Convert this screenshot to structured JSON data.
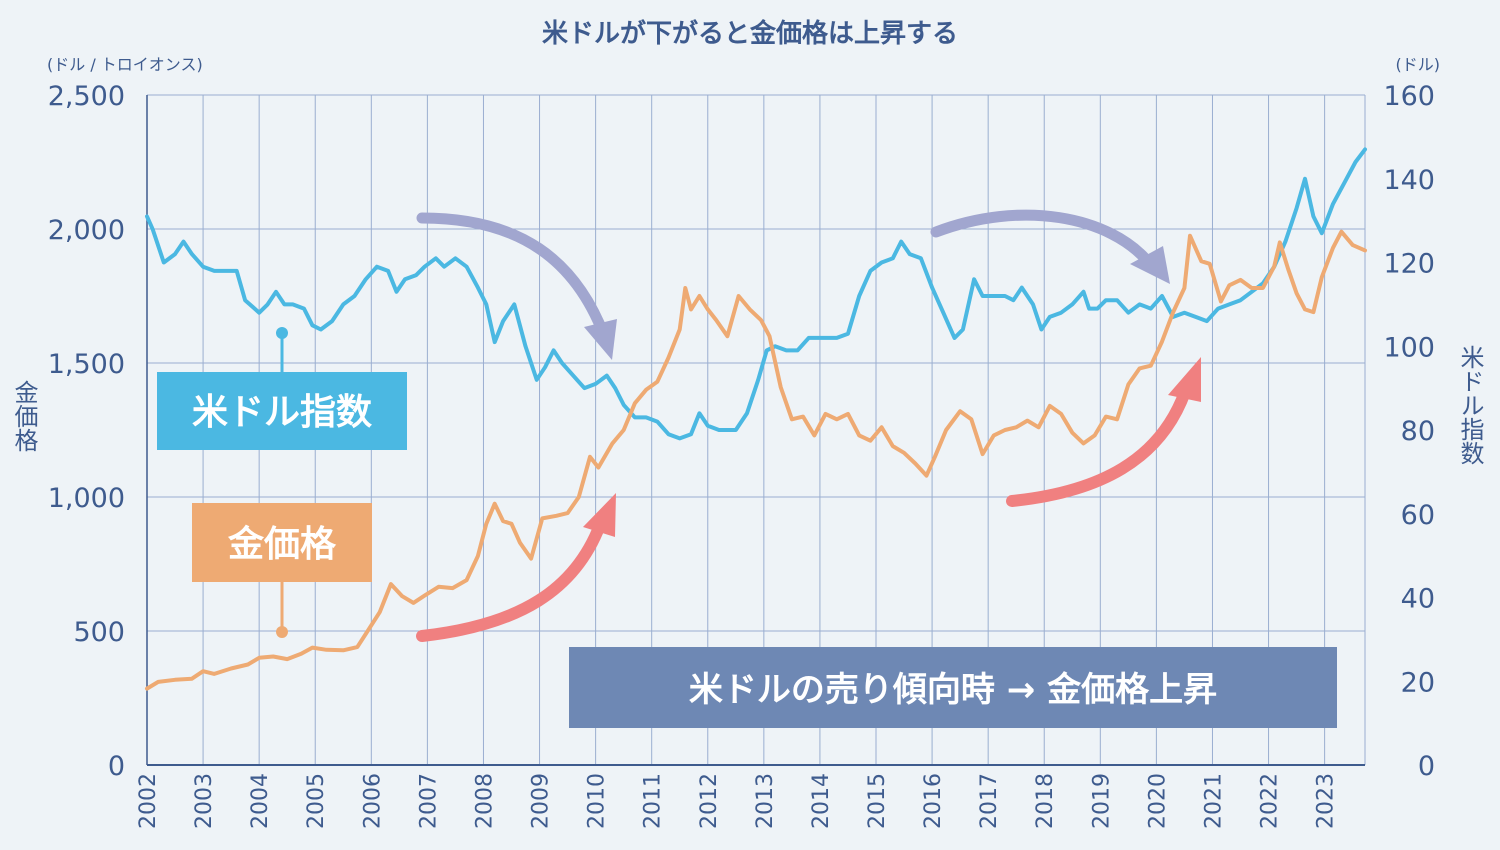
{
  "chart_data": {
    "type": "line",
    "title": "米ドルが下がると金価格は上昇する",
    "left_axis": {
      "label": "金価格",
      "unit": "(ドル / トロイオンス)",
      "range": [
        0,
        2500
      ],
      "ticks": [
        "0",
        "500",
        "1,000",
        "1,500",
        "2,000",
        "2,500"
      ]
    },
    "right_axis": {
      "label": "米ドル指数",
      "unit": "(ドル)",
      "range": [
        0,
        160
      ],
      "ticks": [
        "0",
        "20",
        "40",
        "60",
        "80",
        "100",
        "120",
        "140",
        "160"
      ]
    },
    "x_axis": {
      "range": [
        2002.0,
        2023.72
      ],
      "ticks": [
        "2002",
        "2003",
        "2004",
        "2005",
        "2006",
        "2007",
        "2008",
        "2009",
        "2010",
        "2011",
        "2012",
        "2013",
        "2014",
        "2015",
        "2016",
        "2017",
        "2018",
        "2019",
        "2020",
        "2021",
        "2022",
        "2023"
      ]
    },
    "grid": true,
    "series": [
      {
        "name": "米ドル指数",
        "axis": "right",
        "color": "#4bb8e2",
        "points": [
          [
            2002.0,
            131
          ],
          [
            2002.1,
            128
          ],
          [
            2002.3,
            120
          ],
          [
            2002.5,
            122
          ],
          [
            2002.65,
            125
          ],
          [
            2002.8,
            122
          ],
          [
            2003.0,
            119
          ],
          [
            2003.2,
            118
          ],
          [
            2003.4,
            118
          ],
          [
            2003.6,
            118
          ],
          [
            2003.75,
            111
          ],
          [
            2004.0,
            108
          ],
          [
            2004.15,
            110
          ],
          [
            2004.3,
            113
          ],
          [
            2004.45,
            110
          ],
          [
            2004.6,
            110
          ],
          [
            2004.8,
            109
          ],
          [
            2004.95,
            105
          ],
          [
            2005.1,
            104
          ],
          [
            2005.3,
            106
          ],
          [
            2005.5,
            110
          ],
          [
            2005.7,
            112
          ],
          [
            2005.9,
            116
          ],
          [
            2006.1,
            119
          ],
          [
            2006.3,
            118
          ],
          [
            2006.45,
            113
          ],
          [
            2006.6,
            116
          ],
          [
            2006.8,
            117
          ],
          [
            2006.95,
            119
          ],
          [
            2007.15,
            121
          ],
          [
            2007.3,
            119
          ],
          [
            2007.5,
            121
          ],
          [
            2007.7,
            119
          ],
          [
            2007.9,
            114
          ],
          [
            2008.05,
            110
          ],
          [
            2008.2,
            101
          ],
          [
            2008.35,
            106
          ],
          [
            2008.55,
            110
          ],
          [
            2008.75,
            100
          ],
          [
            2008.95,
            92
          ],
          [
            2009.1,
            95
          ],
          [
            2009.25,
            99
          ],
          [
            2009.4,
            96
          ],
          [
            2009.6,
            93
          ],
          [
            2009.8,
            90
          ],
          [
            2010.0,
            91
          ],
          [
            2010.2,
            93
          ],
          [
            2010.35,
            90
          ],
          [
            2010.5,
            86
          ],
          [
            2010.7,
            83
          ],
          [
            2010.9,
            83
          ],
          [
            2011.1,
            82
          ],
          [
            2011.3,
            79
          ],
          [
            2011.5,
            78
          ],
          [
            2011.7,
            79
          ],
          [
            2011.85,
            84
          ],
          [
            2012.0,
            81
          ],
          [
            2012.2,
            80
          ],
          [
            2012.5,
            80
          ],
          [
            2012.7,
            84
          ],
          [
            2012.9,
            92
          ],
          [
            2013.05,
            99
          ],
          [
            2013.2,
            100
          ],
          [
            2013.4,
            99
          ],
          [
            2013.6,
            99
          ],
          [
            2013.8,
            102
          ],
          [
            2014.0,
            102
          ],
          [
            2014.3,
            102
          ],
          [
            2014.5,
            103
          ],
          [
            2014.7,
            112
          ],
          [
            2014.9,
            118
          ],
          [
            2015.1,
            120
          ],
          [
            2015.3,
            121
          ],
          [
            2015.45,
            125
          ],
          [
            2015.6,
            122
          ],
          [
            2015.8,
            121
          ],
          [
            2016.0,
            114
          ],
          [
            2016.2,
            108
          ],
          [
            2016.4,
            102
          ],
          [
            2016.55,
            104
          ],
          [
            2016.75,
            116
          ],
          [
            2016.9,
            112
          ],
          [
            2017.1,
            112
          ],
          [
            2017.3,
            112
          ],
          [
            2017.45,
            111
          ],
          [
            2017.6,
            114
          ],
          [
            2017.8,
            110
          ],
          [
            2017.95,
            104
          ],
          [
            2018.1,
            107
          ],
          [
            2018.3,
            108
          ],
          [
            2018.5,
            110
          ],
          [
            2018.7,
            113
          ],
          [
            2018.8,
            109
          ],
          [
            2018.95,
            109
          ],
          [
            2019.1,
            111
          ],
          [
            2019.3,
            111
          ],
          [
            2019.5,
            108
          ],
          [
            2019.7,
            110
          ],
          [
            2019.9,
            109
          ],
          [
            2020.1,
            112
          ],
          [
            2020.3,
            107
          ],
          [
            2020.5,
            108
          ],
          [
            2020.7,
            107
          ],
          [
            2020.9,
            106
          ],
          [
            2021.1,
            109
          ],
          [
            2021.3,
            110
          ],
          [
            2021.5,
            111
          ],
          [
            2021.7,
            113
          ],
          [
            2021.9,
            115
          ],
          [
            2022.1,
            119
          ],
          [
            2022.3,
            125
          ],
          [
            2022.5,
            133
          ],
          [
            2022.65,
            140
          ],
          [
            2022.8,
            131
          ],
          [
            2022.95,
            127
          ],
          [
            2023.15,
            134
          ],
          [
            2023.35,
            139
          ],
          [
            2023.55,
            144
          ],
          [
            2023.72,
            147
          ]
        ]
      },
      {
        "name": "金価格",
        "axis": "left",
        "color": "#eeaa73",
        "points": [
          [
            2002.0,
            285
          ],
          [
            2002.2,
            310
          ],
          [
            2002.5,
            318
          ],
          [
            2002.8,
            322
          ],
          [
            2003.0,
            350
          ],
          [
            2003.2,
            340
          ],
          [
            2003.5,
            360
          ],
          [
            2003.8,
            375
          ],
          [
            2004.0,
            400
          ],
          [
            2004.25,
            405
          ],
          [
            2004.5,
            395
          ],
          [
            2004.75,
            415
          ],
          [
            2004.95,
            438
          ],
          [
            2005.2,
            430
          ],
          [
            2005.5,
            428
          ],
          [
            2005.75,
            440
          ],
          [
            2005.95,
            505
          ],
          [
            2006.15,
            570
          ],
          [
            2006.35,
            675
          ],
          [
            2006.55,
            630
          ],
          [
            2006.75,
            605
          ],
          [
            2006.95,
            632
          ],
          [
            2007.2,
            665
          ],
          [
            2007.45,
            660
          ],
          [
            2007.7,
            690
          ],
          [
            2007.9,
            780
          ],
          [
            2008.05,
            900
          ],
          [
            2008.2,
            975
          ],
          [
            2008.35,
            910
          ],
          [
            2008.5,
            900
          ],
          [
            2008.65,
            830
          ],
          [
            2008.85,
            770
          ],
          [
            2009.05,
            920
          ],
          [
            2009.3,
            930
          ],
          [
            2009.5,
            940
          ],
          [
            2009.7,
            1000
          ],
          [
            2009.9,
            1150
          ],
          [
            2010.05,
            1110
          ],
          [
            2010.3,
            1200
          ],
          [
            2010.5,
            1250
          ],
          [
            2010.7,
            1350
          ],
          [
            2010.9,
            1400
          ],
          [
            2011.1,
            1430
          ],
          [
            2011.3,
            1520
          ],
          [
            2011.5,
            1625
          ],
          [
            2011.6,
            1780
          ],
          [
            2011.7,
            1700
          ],
          [
            2011.85,
            1750
          ],
          [
            2012.0,
            1700
          ],
          [
            2012.15,
            1660
          ],
          [
            2012.35,
            1600
          ],
          [
            2012.55,
            1750
          ],
          [
            2012.75,
            1700
          ],
          [
            2012.95,
            1660
          ],
          [
            2013.1,
            1600
          ],
          [
            2013.3,
            1410
          ],
          [
            2013.5,
            1290
          ],
          [
            2013.7,
            1300
          ],
          [
            2013.9,
            1230
          ],
          [
            2014.1,
            1310
          ],
          [
            2014.3,
            1290
          ],
          [
            2014.5,
            1310
          ],
          [
            2014.7,
            1230
          ],
          [
            2014.9,
            1210
          ],
          [
            2015.1,
            1260
          ],
          [
            2015.3,
            1190
          ],
          [
            2015.5,
            1165
          ],
          [
            2015.7,
            1125
          ],
          [
            2015.9,
            1080
          ],
          [
            2016.05,
            1150
          ],
          [
            2016.25,
            1250
          ],
          [
            2016.5,
            1320
          ],
          [
            2016.7,
            1290
          ],
          [
            2016.9,
            1160
          ],
          [
            2017.1,
            1230
          ],
          [
            2017.3,
            1250
          ],
          [
            2017.5,
            1260
          ],
          [
            2017.7,
            1285
          ],
          [
            2017.9,
            1260
          ],
          [
            2018.1,
            1340
          ],
          [
            2018.3,
            1310
          ],
          [
            2018.5,
            1240
          ],
          [
            2018.7,
            1200
          ],
          [
            2018.9,
            1230
          ],
          [
            2019.1,
            1300
          ],
          [
            2019.3,
            1290
          ],
          [
            2019.5,
            1420
          ],
          [
            2019.7,
            1480
          ],
          [
            2019.9,
            1490
          ],
          [
            2020.1,
            1580
          ],
          [
            2020.3,
            1690
          ],
          [
            2020.5,
            1780
          ],
          [
            2020.6,
            1975
          ],
          [
            2020.8,
            1880
          ],
          [
            2020.95,
            1870
          ],
          [
            2021.15,
            1730
          ],
          [
            2021.3,
            1790
          ],
          [
            2021.5,
            1810
          ],
          [
            2021.7,
            1780
          ],
          [
            2021.9,
            1780
          ],
          [
            2022.1,
            1860
          ],
          [
            2022.2,
            1950
          ],
          [
            2022.35,
            1850
          ],
          [
            2022.5,
            1760
          ],
          [
            2022.65,
            1700
          ],
          [
            2022.8,
            1690
          ],
          [
            2022.95,
            1820
          ],
          [
            2023.15,
            1930
          ],
          [
            2023.3,
            1990
          ],
          [
            2023.5,
            1940
          ],
          [
            2023.72,
            1920
          ]
        ]
      }
    ],
    "annotations": {
      "dollar_label": "米ドル指数",
      "gold_label": "金価格",
      "banner": "米ドルの売り傾向時 → 金価格上昇"
    }
  }
}
